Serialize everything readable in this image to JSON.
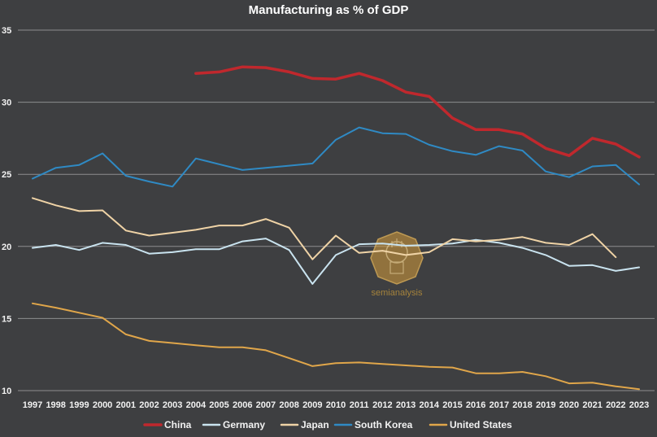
{
  "chart_data": {
    "type": "line",
    "title": "Manufacturing as % of GDP",
    "xlabel": "",
    "ylabel": "",
    "ylim": [
      10,
      35
    ],
    "yticks": [
      10,
      15,
      20,
      25,
      30,
      35
    ],
    "grid": true,
    "legend_position": "bottom",
    "categories": [
      "1997",
      "1998",
      "1999",
      "2000",
      "2001",
      "2002",
      "2003",
      "2004",
      "2005",
      "2006",
      "2007",
      "2008",
      "2009",
      "2010",
      "2011",
      "2012",
      "2013",
      "2014",
      "2015",
      "2016",
      "2017",
      "2018",
      "2019",
      "2020",
      "2021",
      "2022",
      "2023"
    ],
    "series": [
      {
        "name": "China",
        "color": "#c0282d",
        "width": 3.5,
        "values": [
          null,
          null,
          null,
          null,
          null,
          null,
          null,
          32.0,
          32.1,
          32.45,
          32.4,
          32.1,
          31.65,
          31.6,
          32.0,
          31.5,
          30.7,
          30.4,
          28.9,
          28.1,
          28.1,
          27.8,
          26.8,
          26.3,
          27.5,
          27.1,
          26.2
        ]
      },
      {
        "name": "Germany",
        "color": "#c9e3ef",
        "width": 2,
        "values": [
          19.9,
          20.1,
          19.75,
          20.25,
          20.1,
          19.5,
          19.6,
          19.8,
          19.8,
          20.35,
          20.55,
          19.75,
          17.4,
          19.4,
          20.15,
          20.2,
          20.05,
          20.1,
          20.2,
          20.45,
          20.25,
          19.9,
          19.4,
          18.65,
          18.7,
          18.3,
          18.55
        ]
      },
      {
        "name": "Japan",
        "color": "#efd3a6",
        "width": 2,
        "values": [
          23.35,
          22.85,
          22.45,
          22.5,
          21.1,
          20.75,
          20.95,
          21.15,
          21.45,
          21.45,
          21.9,
          21.3,
          19.1,
          20.75,
          19.55,
          19.7,
          19.4,
          19.6,
          20.5,
          20.35,
          20.45,
          20.65,
          20.25,
          20.1,
          20.85,
          19.25,
          null
        ]
      },
      {
        "name": "South Korea",
        "color": "#2f8ac4",
        "width": 2,
        "values": [
          24.7,
          25.45,
          25.65,
          26.45,
          24.9,
          24.5,
          24.15,
          26.1,
          25.7,
          25.3,
          25.45,
          25.6,
          25.75,
          27.4,
          28.25,
          27.85,
          27.8,
          27.05,
          26.6,
          26.35,
          26.95,
          26.65,
          25.2,
          24.8,
          25.55,
          25.65,
          24.3
        ]
      },
      {
        "name": "United States",
        "color": "#e0a64a",
        "width": 2,
        "values": [
          16.05,
          15.75,
          15.4,
          15.05,
          13.9,
          13.45,
          13.3,
          13.15,
          13.0,
          13.0,
          12.8,
          12.25,
          11.7,
          11.9,
          11.95,
          11.85,
          11.75,
          11.65,
          11.6,
          11.2,
          11.2,
          11.3,
          11.0,
          10.5,
          10.55,
          10.3,
          10.1
        ]
      }
    ]
  },
  "watermark": {
    "text": "semianalysis",
    "icon": "chip-hand-logo-icon",
    "color": "#c89a3a"
  }
}
